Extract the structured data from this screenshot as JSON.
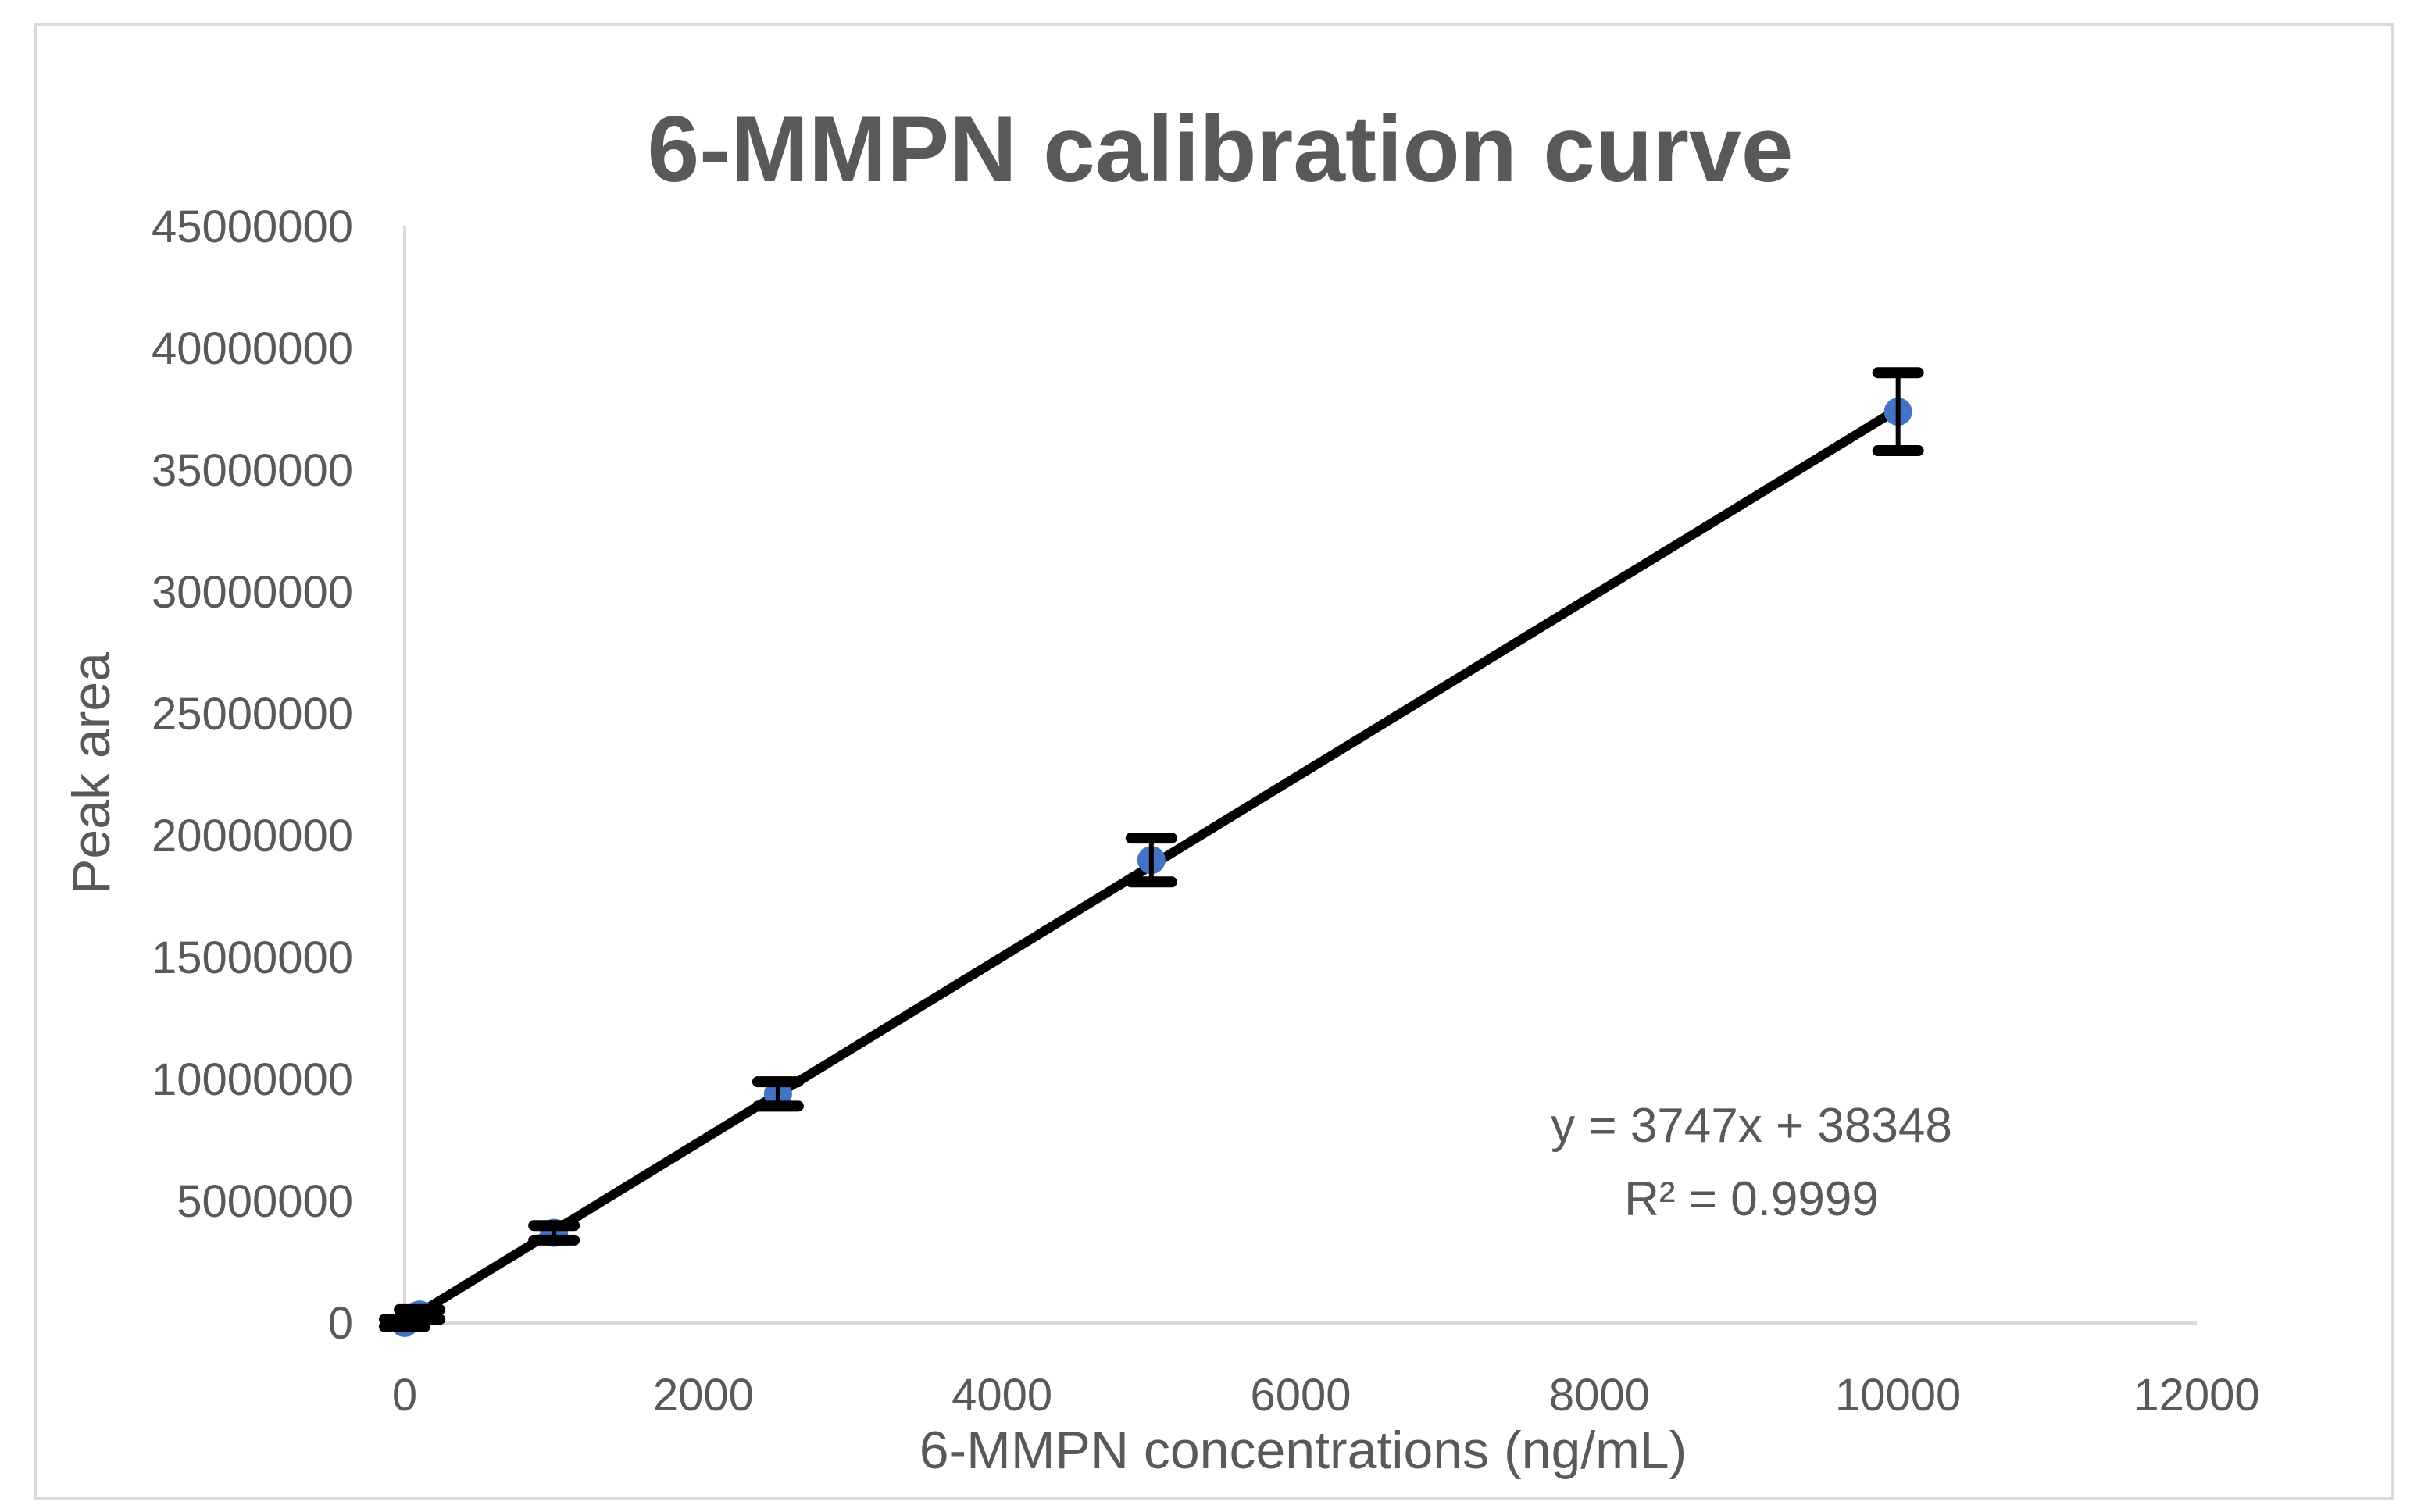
{
  "chart_data": {
    "type": "scatter",
    "title": "6-MMPN calibration curve",
    "xlabel": "6-MMPN concentrations (ng/mL)",
    "ylabel": "Peak area",
    "xlim": [
      0,
      12000
    ],
    "ylim": [
      0,
      45000000
    ],
    "x_ticks": [
      "0",
      "2000",
      "4000",
      "6000",
      "8000",
      "10000",
      "12000"
    ],
    "y_ticks": [
      "0",
      "5000000",
      "10000000",
      "15000000",
      "20000000",
      "25000000",
      "30000000",
      "35000000",
      "40000000",
      "45000000"
    ],
    "grid": false,
    "series": [
      {
        "name": "6-MMPN",
        "color": "#4472c4",
        "points": [
          {
            "x": 0,
            "y": 0,
            "err": 150000
          },
          {
            "x": 100,
            "y": 350000,
            "err": 200000
          },
          {
            "x": 1000,
            "y": 3700000,
            "err": 300000
          },
          {
            "x": 2500,
            "y": 9400000,
            "err": 500000
          },
          {
            "x": 5000,
            "y": 19000000,
            "err": 900000
          },
          {
            "x": 10000,
            "y": 37400000,
            "err": 1600000
          }
        ]
      }
    ],
    "trendline": {
      "slope": 3747,
      "intercept": 38348,
      "color": "#000000",
      "equation": "y = 3747x + 38348",
      "r_squared": "R² = 0.9999"
    },
    "error_bar_color": "#000000"
  }
}
